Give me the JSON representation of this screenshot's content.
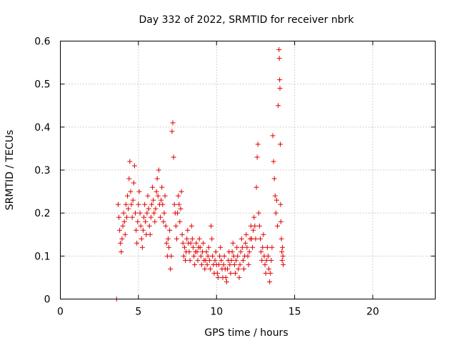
{
  "chart_data": {
    "type": "scatter",
    "title": "Day 332 of 2022, SRMTID for receiver nbrk",
    "xlabel": "GPS time / hours",
    "ylabel": "SRMTID / TECUs",
    "xlim": [
      0,
      24
    ],
    "ylim": [
      0,
      0.6
    ],
    "x_ticks": [
      0,
      5,
      10,
      15,
      20
    ],
    "y_ticks": [
      0,
      0.1,
      0.2,
      0.3,
      0.4,
      0.5,
      0.6
    ],
    "x_tick_labels": [
      "0",
      "5",
      "10",
      "15",
      "20"
    ],
    "y_tick_labels": [
      "0",
      "0.1",
      "0.2",
      "0.3",
      "0.4",
      "0.5",
      "0.6"
    ],
    "grid": true,
    "marker": "plus",
    "series": [
      {
        "name": "SRMTID",
        "color": "#e00000",
        "points": [
          [
            3.6,
            0.0
          ],
          [
            3.7,
            0.22
          ],
          [
            3.75,
            0.19
          ],
          [
            3.8,
            0.16
          ],
          [
            3.85,
            0.13
          ],
          [
            3.9,
            0.11
          ],
          [
            3.95,
            0.14
          ],
          [
            4.0,
            0.17
          ],
          [
            4.05,
            0.2
          ],
          [
            4.1,
            0.18
          ],
          [
            4.15,
            0.15
          ],
          [
            4.2,
            0.22
          ],
          [
            4.25,
            0.19
          ],
          [
            4.3,
            0.24
          ],
          [
            4.35,
            0.21
          ],
          [
            4.4,
            0.28
          ],
          [
            4.45,
            0.32
          ],
          [
            4.5,
            0.25
          ],
          [
            4.55,
            0.22
          ],
          [
            4.6,
            0.19
          ],
          [
            4.65,
            0.23
          ],
          [
            4.7,
            0.27
          ],
          [
            4.75,
            0.31
          ],
          [
            4.8,
            0.2
          ],
          [
            4.85,
            0.16
          ],
          [
            4.9,
            0.13
          ],
          [
            4.95,
            0.18
          ],
          [
            5.0,
            0.22
          ],
          [
            5.05,
            0.25
          ],
          [
            5.1,
            0.2
          ],
          [
            5.15,
            0.17
          ],
          [
            5.2,
            0.14
          ],
          [
            5.25,
            0.12
          ],
          [
            5.3,
            0.16
          ],
          [
            5.35,
            0.19
          ],
          [
            5.4,
            0.22
          ],
          [
            5.45,
            0.18
          ],
          [
            5.5,
            0.15
          ],
          [
            5.55,
            0.2
          ],
          [
            5.6,
            0.24
          ],
          [
            5.65,
            0.21
          ],
          [
            5.7,
            0.17
          ],
          [
            5.75,
            0.15
          ],
          [
            5.8,
            0.19
          ],
          [
            5.85,
            0.22
          ],
          [
            5.9,
            0.26
          ],
          [
            5.95,
            0.23
          ],
          [
            6.0,
            0.2
          ],
          [
            6.05,
            0.18
          ],
          [
            6.1,
            0.21
          ],
          [
            6.15,
            0.25
          ],
          [
            6.2,
            0.28
          ],
          [
            6.25,
            0.24
          ],
          [
            6.3,
            0.3
          ],
          [
            6.35,
            0.22
          ],
          [
            6.4,
            0.19
          ],
          [
            6.45,
            0.23
          ],
          [
            6.5,
            0.26
          ],
          [
            6.55,
            0.22
          ],
          [
            6.6,
            0.18
          ],
          [
            6.65,
            0.2
          ],
          [
            6.7,
            0.24
          ],
          [
            6.75,
            0.17
          ],
          [
            6.8,
            0.13
          ],
          [
            6.85,
            0.1
          ],
          [
            6.9,
            0.14
          ],
          [
            6.95,
            0.12
          ],
          [
            7.0,
            0.16
          ],
          [
            7.05,
            0.07
          ],
          [
            7.1,
            0.1
          ],
          [
            7.15,
            0.39
          ],
          [
            7.2,
            0.41
          ],
          [
            7.25,
            0.33
          ],
          [
            7.3,
            0.22
          ],
          [
            7.35,
            0.2
          ],
          [
            7.4,
            0.17
          ],
          [
            7.45,
            0.14
          ],
          [
            7.5,
            0.2
          ],
          [
            7.55,
            0.24
          ],
          [
            7.6,
            0.22
          ],
          [
            7.65,
            0.18
          ],
          [
            7.7,
            0.21
          ],
          [
            7.75,
            0.25
          ],
          [
            7.8,
            0.15
          ],
          [
            7.85,
            0.13
          ],
          [
            7.9,
            0.1
          ],
          [
            7.95,
            0.12
          ],
          [
            8.0,
            0.09
          ],
          [
            8.05,
            0.11
          ],
          [
            8.1,
            0.14
          ],
          [
            8.15,
            0.16
          ],
          [
            8.2,
            0.13
          ],
          [
            8.25,
            0.11
          ],
          [
            8.3,
            0.09
          ],
          [
            8.35,
            0.13
          ],
          [
            8.4,
            0.17
          ],
          [
            8.45,
            0.14
          ],
          [
            8.5,
            0.12
          ],
          [
            8.55,
            0.1
          ],
          [
            8.6,
            0.08
          ],
          [
            8.65,
            0.11
          ],
          [
            8.7,
            0.13
          ],
          [
            8.75,
            0.11
          ],
          [
            8.8,
            0.09
          ],
          [
            8.85,
            0.12
          ],
          [
            8.9,
            0.14
          ],
          [
            8.95,
            0.12
          ],
          [
            9.0,
            0.1
          ],
          [
            9.05,
            0.08
          ],
          [
            9.1,
            0.11
          ],
          [
            9.15,
            0.13
          ],
          [
            9.2,
            0.09
          ],
          [
            9.25,
            0.07
          ],
          [
            9.3,
            0.09
          ],
          [
            9.35,
            0.11
          ],
          [
            9.4,
            0.08
          ],
          [
            9.45,
            0.1
          ],
          [
            9.5,
            0.12
          ],
          [
            9.55,
            0.09
          ],
          [
            9.6,
            0.07
          ],
          [
            9.65,
            0.17
          ],
          [
            9.7,
            0.14
          ],
          [
            9.75,
            0.1
          ],
          [
            9.8,
            0.08
          ],
          [
            9.85,
            0.06
          ],
          [
            9.9,
            0.09
          ],
          [
            9.95,
            0.11
          ],
          [
            10.0,
            0.08
          ],
          [
            10.05,
            0.06
          ],
          [
            10.1,
            0.05
          ],
          [
            10.15,
            0.08
          ],
          [
            10.2,
            0.1
          ],
          [
            10.25,
            0.12
          ],
          [
            10.3,
            0.09
          ],
          [
            10.35,
            0.07
          ],
          [
            10.4,
            0.05
          ],
          [
            10.45,
            0.08
          ],
          [
            10.5,
            0.1
          ],
          [
            10.55,
            0.07
          ],
          [
            10.6,
            0.05
          ],
          [
            10.65,
            0.04
          ],
          [
            10.7,
            0.07
          ],
          [
            10.75,
            0.09
          ],
          [
            10.8,
            0.11
          ],
          [
            10.85,
            0.08
          ],
          [
            10.9,
            0.06
          ],
          [
            10.95,
            0.09
          ],
          [
            11.0,
            0.11
          ],
          [
            11.05,
            0.13
          ],
          [
            11.1,
            0.1
          ],
          [
            11.15,
            0.08
          ],
          [
            11.2,
            0.06
          ],
          [
            11.25,
            0.09
          ],
          [
            11.3,
            0.12
          ],
          [
            11.35,
            0.1
          ],
          [
            11.4,
            0.07
          ],
          [
            11.45,
            0.05
          ],
          [
            11.5,
            0.08
          ],
          [
            11.55,
            0.11
          ],
          [
            11.6,
            0.14
          ],
          [
            11.65,
            0.12
          ],
          [
            11.7,
            0.09
          ],
          [
            11.75,
            0.07
          ],
          [
            11.8,
            0.1
          ],
          [
            11.85,
            0.13
          ],
          [
            11.9,
            0.15
          ],
          [
            11.95,
            0.12
          ],
          [
            12.0,
            0.1
          ],
          [
            12.05,
            0.08
          ],
          [
            12.1,
            0.11
          ],
          [
            12.15,
            0.14
          ],
          [
            12.2,
            0.17
          ],
          [
            12.25,
            0.14
          ],
          [
            12.3,
            0.12
          ],
          [
            12.35,
            0.16
          ],
          [
            12.4,
            0.19
          ],
          [
            12.45,
            0.17
          ],
          [
            12.5,
            0.14
          ],
          [
            12.55,
            0.26
          ],
          [
            12.6,
            0.33
          ],
          [
            12.65,
            0.36
          ],
          [
            12.7,
            0.2
          ],
          [
            12.75,
            0.17
          ],
          [
            12.8,
            0.14
          ],
          [
            12.85,
            0.11
          ],
          [
            12.9,
            0.09
          ],
          [
            12.95,
            0.12
          ],
          [
            13.0,
            0.15
          ],
          [
            13.05,
            0.1
          ],
          [
            13.1,
            0.08
          ],
          [
            13.15,
            0.06
          ],
          [
            13.2,
            0.09
          ],
          [
            13.25,
            0.12
          ],
          [
            13.3,
            0.1
          ],
          [
            13.35,
            0.07
          ],
          [
            13.4,
            0.04
          ],
          [
            13.45,
            0.06
          ],
          [
            13.5,
            0.09
          ],
          [
            13.55,
            0.12
          ],
          [
            13.6,
            0.38
          ],
          [
            13.65,
            0.32
          ],
          [
            13.7,
            0.28
          ],
          [
            13.75,
            0.24
          ],
          [
            13.8,
            0.2
          ],
          [
            13.85,
            0.23
          ],
          [
            13.9,
            0.17
          ],
          [
            13.95,
            0.45
          ],
          [
            14.0,
            0.58
          ],
          [
            14.02,
            0.56
          ],
          [
            14.04,
            0.51
          ],
          [
            14.06,
            0.49
          ],
          [
            14.08,
            0.36
          ],
          [
            14.1,
            0.22
          ],
          [
            14.12,
            0.18
          ],
          [
            14.15,
            0.14
          ],
          [
            14.18,
            0.11
          ],
          [
            14.2,
            0.09
          ],
          [
            14.22,
            0.12
          ],
          [
            14.25,
            0.1
          ],
          [
            14.27,
            0.08
          ]
        ]
      }
    ]
  }
}
